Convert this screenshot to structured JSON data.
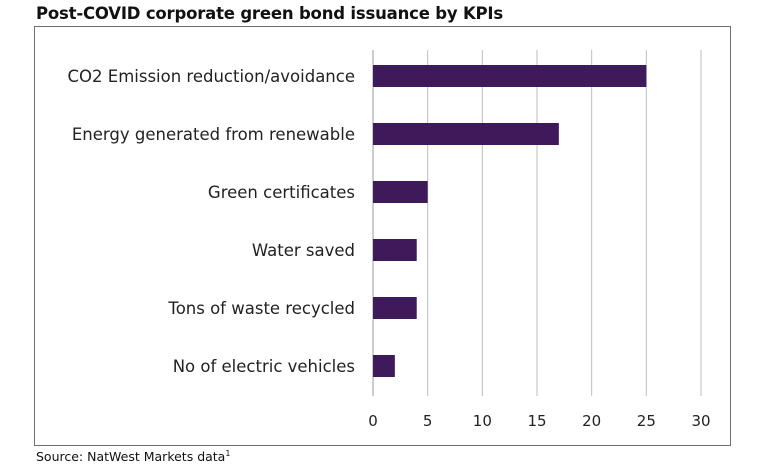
{
  "title": "Post-COVID corporate green bond issuance by KPIs",
  "source_text": "Source: NatWest Markets data",
  "source_footnote": "1",
  "chart_data": {
    "type": "bar",
    "orientation": "horizontal",
    "title": "Post-COVID corporate green bond issuance by KPIs",
    "categories": [
      "CO2 Emission reduction/avoidance",
      "Energy generated from renewable",
      "Green certificates",
      "Water saved",
      "Tons of waste recycled",
      "No of electric vehicles"
    ],
    "values": [
      25,
      17,
      5,
      4,
      4,
      2
    ],
    "xlim": [
      0,
      30
    ],
    "xticks": [
      0,
      5,
      10,
      15,
      20,
      25,
      30
    ],
    "xlabel": "",
    "ylabel": "",
    "grid": "vertical",
    "bar_color": "#3f1a5b",
    "grid_color": "#bdbdbd"
  }
}
